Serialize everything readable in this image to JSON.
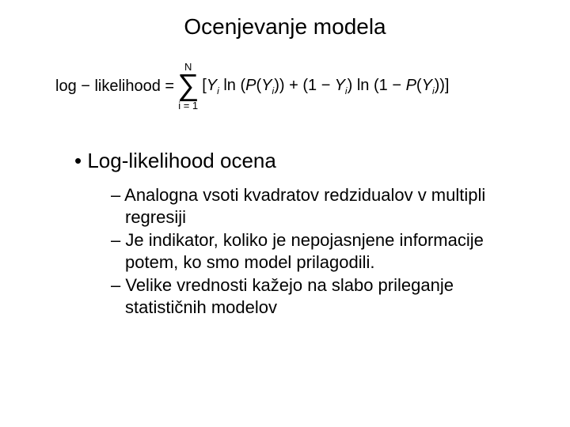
{
  "title": "Ocenjevanje modela",
  "formula": {
    "lhs": "log − likelihood =",
    "sum_upper": "N",
    "sum_lower": "i = 1",
    "rhs_html": "[Y<i>i</i> ln (P(Y<i>i</i>)) + (1 − Y<i>i</i>) ln (1 − P(Y<i>i</i>))]"
  },
  "bullet_main": "Log-likelihood ocena",
  "sub_bullets": [
    "Analogna vsoti kvadratov redzidualov v multipli regresiji",
    "Je indikator, koliko je nepojasnjene informacije potem, ko smo model prilagodili.",
    "Velike vrednosti kažejo na slabo prileganje statističnih modelov"
  ],
  "styling": {
    "background_color": "#ffffff",
    "text_color": "#000000",
    "title_fontsize": 28,
    "bullet_main_fontsize": 26,
    "sub_bullet_fontsize": 22,
    "formula_fontsize": 20,
    "font_family": "Arial"
  }
}
